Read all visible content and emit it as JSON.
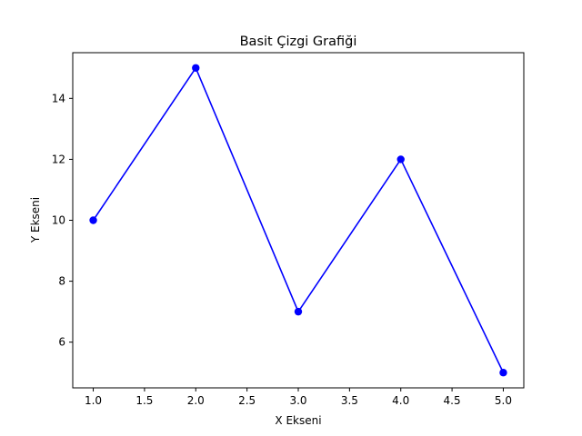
{
  "chart_data": {
    "type": "line",
    "title": "Basit Çizgi Grafiği",
    "xlabel": "X Ekseni",
    "ylabel": "Y Ekseni",
    "x": [
      1,
      2,
      3,
      4,
      5
    ],
    "series": [
      {
        "values": [
          10,
          15,
          7,
          12,
          5
        ],
        "color": "#0000ff",
        "marker": "circle"
      }
    ],
    "xlim": [
      0.8,
      5.2
    ],
    "ylim": [
      4.5,
      15.5
    ],
    "xticks": [
      "1.0",
      "1.5",
      "2.0",
      "2.5",
      "3.0",
      "3.5",
      "4.0",
      "4.5",
      "5.0"
    ],
    "yticks": [
      "6",
      "8",
      "10",
      "12",
      "14"
    ],
    "grid": false,
    "legend": "none"
  }
}
